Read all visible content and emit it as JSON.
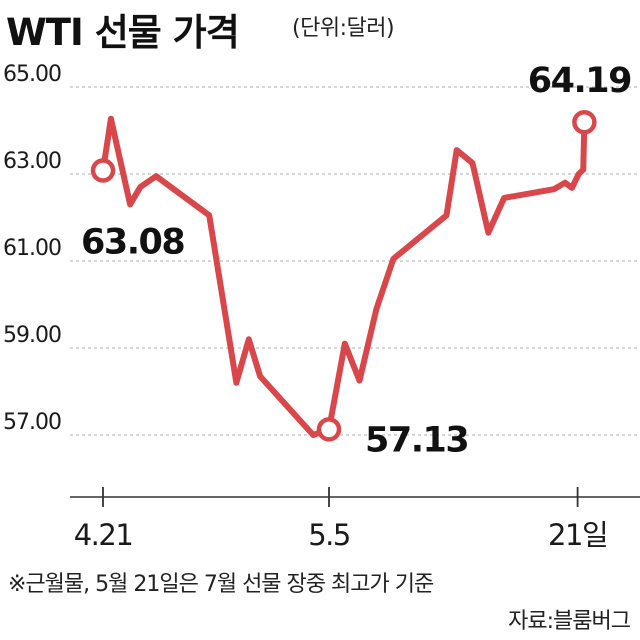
{
  "header": {
    "title": "WTI 선물 가격",
    "unit": "(단위:달러)"
  },
  "footer": {
    "note": "※근월물, 5월 21일은 7월 선물 장중 최고가 기준",
    "source": "자료:블룸버그"
  },
  "colors": {
    "line": "#d9474a",
    "axis": "#333333",
    "grid": "#bfbfbf",
    "text": "#1a1a1a"
  },
  "chart_data": {
    "type": "line",
    "title": "WTI 선물 가격",
    "ylabel": "",
    "xlabel": "",
    "ylim": [
      55.0,
      66.0
    ],
    "yticks": [
      "65.00",
      "63.00",
      "61.00",
      "59.00",
      "57.00"
    ],
    "xtick_labels": [
      "4.21",
      "5.5",
      "21일"
    ],
    "xtick_index": [
      0,
      10,
      21
    ],
    "grid": "horizontal dashed",
    "series": [
      {
        "values": [
          63.08,
          64.27,
          62.3,
          62.7,
          62.95,
          62.05,
          58.2,
          59.2,
          58.35,
          57.0,
          57.13,
          59.1,
          58.25,
          59.9,
          61.05,
          62.05,
          63.55,
          63.25,
          61.65,
          62.45,
          62.65,
          62.8,
          62.68,
          63.0,
          63.1,
          64.19
        ],
        "x_pos": [
          0,
          0.35,
          1.2,
          1.65,
          2.35,
          4.7,
          5.9,
          6.45,
          6.95,
          9.3,
          10,
          10.7,
          11.35,
          12.1,
          12.85,
          15.2,
          15.65,
          16.35,
          17.05,
          17.75,
          19.95,
          20.45,
          20.75,
          21.05,
          21.25,
          21.3
        ],
        "highlights": [
          {
            "x": 0,
            "y": 63.08,
            "label": "63.08"
          },
          {
            "x": 10,
            "y": 57.13,
            "label": "57.13"
          },
          {
            "x": 21.3,
            "y": 64.19,
            "label": "64.19"
          }
        ]
      }
    ]
  }
}
